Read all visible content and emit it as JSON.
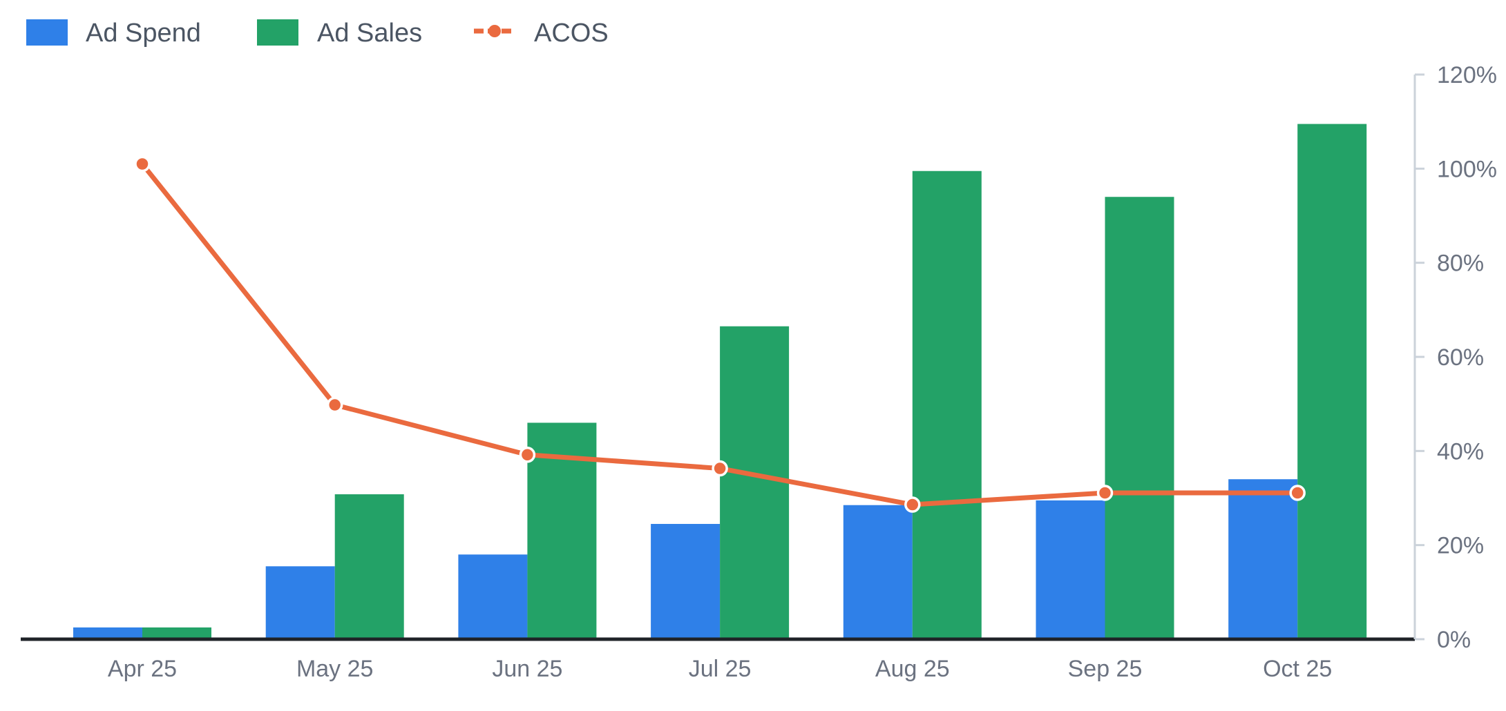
{
  "chart_data": {
    "type": "bar",
    "categories": [
      "Apr 25",
      "May 25",
      "Jun 25",
      "Jul 25",
      "Aug 25",
      "Sep 25",
      "Oct 25"
    ],
    "series": [
      {
        "name": "Ad Spend",
        "type": "bar",
        "color": "#2f80e8",
        "values": [
          2.5,
          15.5,
          18,
          24.5,
          28.5,
          29.5,
          34
        ]
      },
      {
        "name": "Ad Sales",
        "type": "bar",
        "color": "#23a267",
        "values": [
          2.5,
          30.8,
          46,
          66.5,
          99.5,
          94,
          109.5
        ]
      },
      {
        "name": "ACOS",
        "type": "line",
        "color": "#ea6a3f",
        "values": [
          101,
          49.8,
          39.2,
          36.3,
          28.6,
          31.1,
          31.1
        ]
      }
    ],
    "y_axis": {
      "position": "right",
      "min": 0,
      "max": 120,
      "ticks": [
        "0%",
        "20%",
        "40%",
        "60%",
        "80%",
        "100%",
        "120%"
      ]
    },
    "legend": {
      "position": "top-left"
    },
    "grid": false
  }
}
